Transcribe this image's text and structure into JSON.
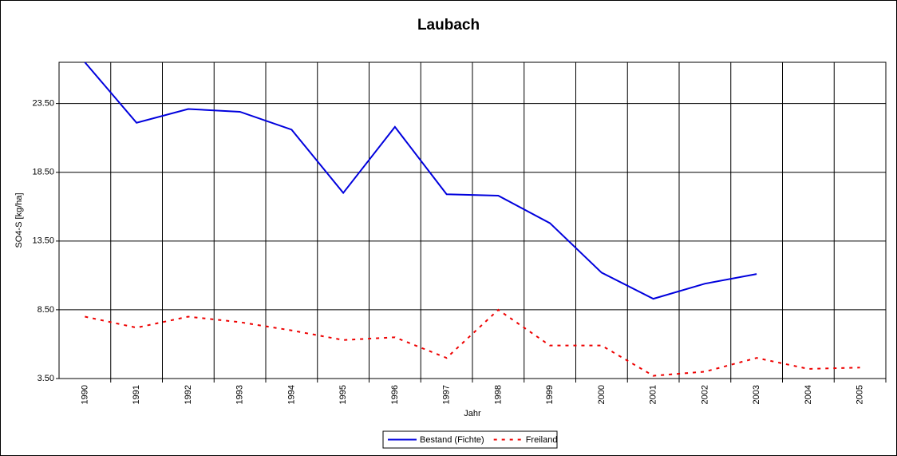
{
  "chart_data": {
    "type": "line",
    "title": "Laubach",
    "x_label": "Jahr",
    "y_label": "SO4-S [kg/ha]",
    "categories": [
      "1990",
      "1991",
      "1992",
      "1993",
      "1994",
      "1995",
      "1996",
      "1997",
      "1998",
      "1999",
      "2000",
      "2001",
      "2002",
      "2003",
      "2004",
      "2005"
    ],
    "series": [
      {
        "name": "Bestand (Fichte)",
        "color": "#0000dd",
        "dash": false,
        "values": [
          26.5,
          22.1,
          23.1,
          22.9,
          21.6,
          17.0,
          21.8,
          16.9,
          16.8,
          14.8,
          11.2,
          9.3,
          10.4,
          11.1,
          null,
          null
        ]
      },
      {
        "name": "Freiland",
        "color": "#ee0000",
        "dash": true,
        "values": [
          8.0,
          7.2,
          8.0,
          7.6,
          7.0,
          6.3,
          6.5,
          5.0,
          8.5,
          5.9,
          5.9,
          3.7,
          4.0,
          5.0,
          4.2,
          4.3
        ]
      }
    ],
    "ylim": [
      3.5,
      26.5
    ],
    "yticks": [
      {
        "value": 3.5,
        "label": "3.50"
      },
      {
        "value": 8.5,
        "label": "8.50"
      },
      {
        "value": 13.5,
        "label": "13.50"
      },
      {
        "value": 18.5,
        "label": "18.50"
      },
      {
        "value": 23.5,
        "label": "23.50"
      }
    ],
    "grid": true,
    "legend": "bottom"
  }
}
